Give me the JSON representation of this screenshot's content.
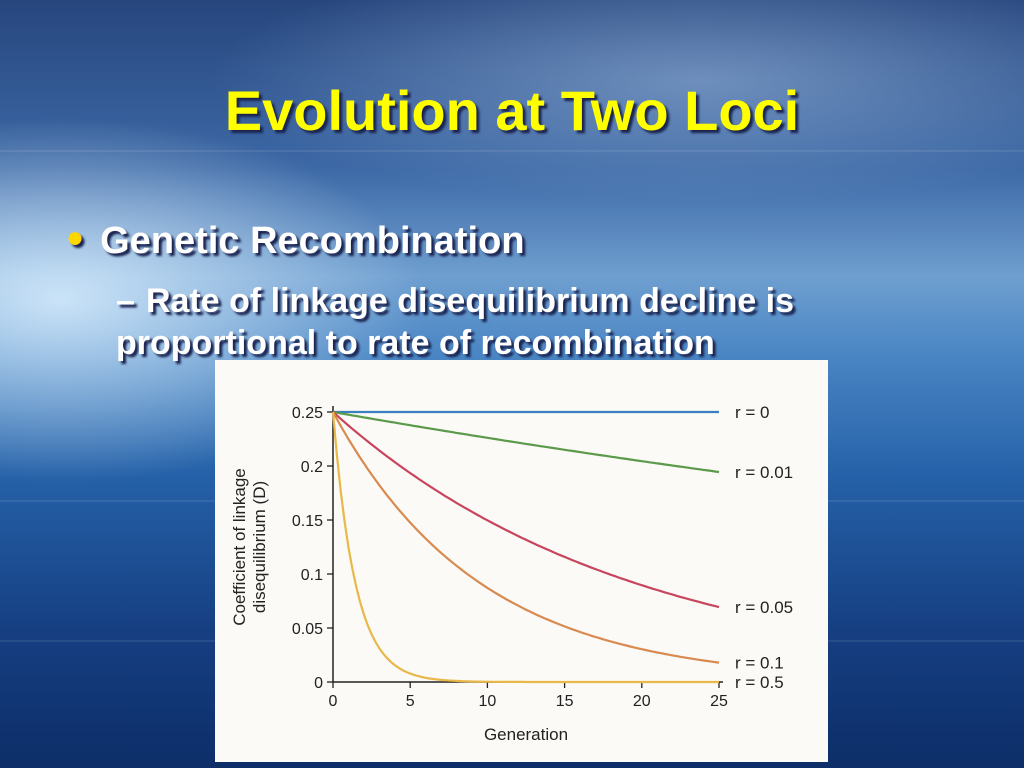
{
  "slide": {
    "title": "Evolution at Two Loci",
    "bullet": "Genetic Recombination",
    "sub_bullet_dash": "–",
    "sub_bullet": "Rate of linkage disequilibrium decline is proportional to rate of recombination"
  },
  "colors": {
    "title": "#ffff00",
    "bullet_dot": "#ffd700",
    "text": "#ffffff"
  },
  "chart_data": {
    "type": "line",
    "title": "",
    "xlabel": "Generation",
    "ylabel": "Coefficient of linkage disequilibrium (D)",
    "ylabel_lines": [
      "Coefficient of linkage",
      "disequilibrium (D)"
    ],
    "xlim": [
      0,
      25
    ],
    "ylim": [
      0,
      0.25
    ],
    "x_ticks": [
      0,
      5,
      10,
      15,
      20,
      25
    ],
    "y_ticks": [
      0,
      0.05,
      0.1,
      0.15,
      0.2,
      0.25
    ],
    "y_tick_labels": [
      "0",
      "0.05",
      "0.1",
      "0.15",
      "0.2",
      "0.25"
    ],
    "grid": false,
    "legend": "inline labels at right end of each line",
    "series": [
      {
        "name": "r = 0",
        "r": 0,
        "color": "#3a7fc1"
      },
      {
        "name": "r = 0.01",
        "r": 0.01,
        "color": "#5a9a4a"
      },
      {
        "name": "r = 0.05",
        "r": 0.05,
        "color": "#c8455e"
      },
      {
        "name": "r = 0.1",
        "r": 0.1,
        "color": "#d88a50"
      },
      {
        "name": "r = 0.5",
        "r": 0.5,
        "color": "#e8b84a"
      }
    ]
  }
}
